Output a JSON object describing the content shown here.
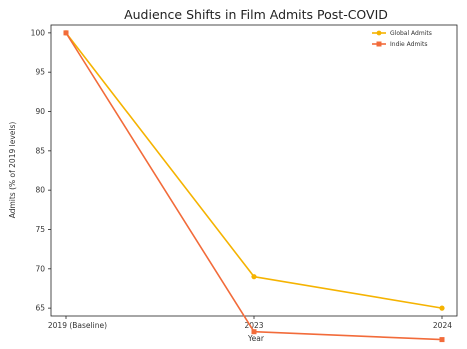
{
  "chart_data": {
    "type": "line",
    "title": "Audience Shifts in Film Admits Post-COVID",
    "xlabel": "Year",
    "ylabel": "Admits (% of 2019 levels)",
    "categories": [
      "2019 (Baseline)",
      "2023",
      "2024"
    ],
    "ylim": [
      64,
      101
    ],
    "yticks": [
      65,
      70,
      75,
      80,
      85,
      90,
      95,
      100
    ],
    "grid": false,
    "legend_position": "top-right",
    "series": [
      {
        "name": "Global Admits",
        "values": [
          100,
          69,
          65
        ],
        "color": "#f5b301",
        "marker": "circle"
      },
      {
        "name": "Indie Admits",
        "values": [
          100,
          62,
          61
        ],
        "color": "#f26b3a",
        "marker": "square"
      }
    ]
  }
}
